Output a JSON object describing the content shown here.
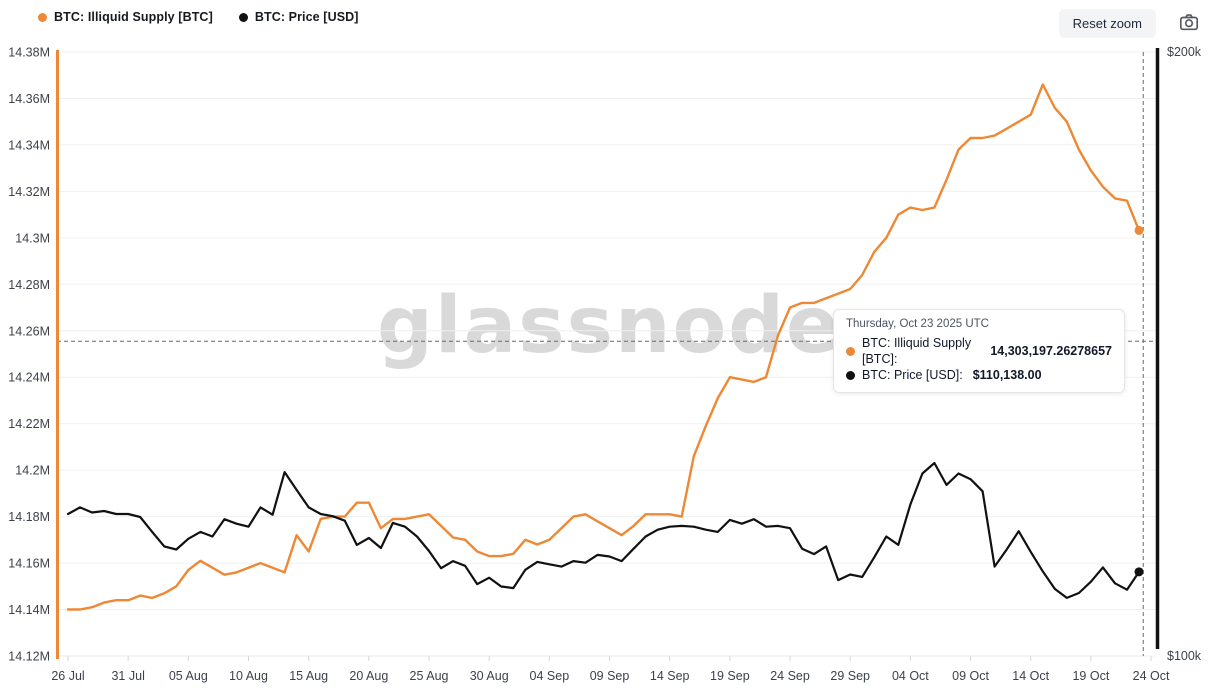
{
  "header": {
    "legend": [
      {
        "label": "BTC: Illiquid Supply [BTC]",
        "color": "#ED8936"
      },
      {
        "label": "BTC: Price [USD]",
        "color": "#111111"
      }
    ],
    "reset_zoom_label": "Reset zoom"
  },
  "watermark": "glassnode",
  "tooltip": {
    "title": "Thursday, Oct 23 2025 UTC",
    "rows": [
      {
        "label": "BTC: Illiquid Supply [BTC]:",
        "value": "14,303,197.26278657",
        "color": "#ED8936"
      },
      {
        "label": "BTC: Price [USD]:",
        "value": "$110,138.00",
        "color": "#111111"
      }
    ]
  },
  "chart_data": {
    "type": "line",
    "title": "",
    "start_date": "2025-07-26",
    "end_date": "2025-10-23",
    "x_tick_labels": [
      "26 Jul",
      "31 Jul",
      "05 Aug",
      "10 Aug",
      "15 Aug",
      "20 Aug",
      "25 Aug",
      "30 Aug",
      "04 Sep",
      "09 Sep",
      "14 Sep",
      "19 Sep",
      "24 Sep",
      "29 Sep",
      "04 Oct",
      "09 Oct",
      "14 Oct",
      "19 Oct",
      "24 Oct"
    ],
    "x_tick_days": [
      0,
      5,
      10,
      15,
      20,
      25,
      30,
      35,
      40,
      45,
      50,
      55,
      60,
      65,
      70,
      75,
      80,
      85,
      90
    ],
    "left_axis": {
      "scale": "linear",
      "range": [
        14.12,
        14.38
      ],
      "unit": "M BTC",
      "ticks": [
        {
          "label": "14.38M",
          "value": 14.38
        },
        {
          "label": "14.36M",
          "value": 14.36
        },
        {
          "label": "14.34M",
          "value": 14.34
        },
        {
          "label": "14.32M",
          "value": 14.32
        },
        {
          "label": "14.3M",
          "value": 14.3
        },
        {
          "label": "14.28M",
          "value": 14.28
        },
        {
          "label": "14.26M",
          "value": 14.26
        },
        {
          "label": "14.24M",
          "value": 14.24
        },
        {
          "label": "14.22M",
          "value": 14.22
        },
        {
          "label": "14.2M",
          "value": 14.2
        },
        {
          "label": "14.18M",
          "value": 14.18
        },
        {
          "label": "14.16M",
          "value": 14.16
        },
        {
          "label": "14.14M",
          "value": 14.14
        },
        {
          "label": "14.12M",
          "value": 14.12
        }
      ]
    },
    "right_axis": {
      "scale": "log",
      "range": [
        100000,
        200000
      ],
      "unit": "USD",
      "ticks": [
        {
          "label": "$200k",
          "value": 200000
        },
        {
          "label": "$100k",
          "value": 100000
        }
      ]
    },
    "grid": "horizontal",
    "legend_position": "top-left",
    "crosshair": {
      "day": 89.35,
      "left_axis_value": 14.2555
    },
    "series": [
      {
        "name": "BTC: Illiquid Supply [BTC]",
        "axis": "left",
        "color": "#ED8936",
        "line_width": 2.4,
        "values": [
          14.14,
          14.14,
          14.141,
          14.143,
          14.144,
          14.144,
          14.146,
          14.145,
          14.147,
          14.15,
          14.157,
          14.161,
          14.158,
          14.155,
          14.156,
          14.158,
          14.16,
          14.158,
          14.156,
          14.172,
          14.165,
          14.179,
          14.18,
          14.18,
          14.186,
          14.186,
          14.175,
          14.179,
          14.179,
          14.18,
          14.181,
          14.176,
          14.171,
          14.17,
          14.165,
          14.163,
          14.163,
          14.164,
          14.17,
          14.168,
          14.17,
          14.175,
          14.18,
          14.181,
          14.178,
          14.175,
          14.172,
          14.176,
          14.181,
          14.181,
          14.181,
          14.18,
          14.206,
          14.219,
          14.231,
          14.24,
          14.239,
          14.238,
          14.24,
          14.258,
          14.27,
          14.272,
          14.272,
          14.274,
          14.276,
          14.278,
          14.284,
          14.294,
          14.3,
          14.31,
          14.313,
          14.312,
          14.313,
          14.325,
          14.338,
          14.343,
          14.343,
          14.344,
          14.347,
          14.35,
          14.353,
          14.366,
          14.356,
          14.35,
          14.338,
          14.329,
          14.322,
          14.317,
          14.316,
          14.30319726278657
        ]
      },
      {
        "name": "BTC: Price [USD]",
        "axis": "right",
        "color": "#111111",
        "line_width": 2.2,
        "values": [
          117700,
          118600,
          117900,
          118100,
          117700,
          117700,
          117300,
          115300,
          113400,
          113000,
          114400,
          115300,
          114700,
          117000,
          116400,
          116000,
          118600,
          117600,
          123500,
          121000,
          118600,
          117700,
          117400,
          116800,
          113600,
          114500,
          113200,
          116500,
          116000,
          114700,
          112800,
          110600,
          111500,
          110900,
          108600,
          109400,
          108300,
          108100,
          110400,
          111400,
          111100,
          110800,
          111500,
          111300,
          112300,
          112100,
          111500,
          113100,
          114700,
          115600,
          116000,
          116100,
          116000,
          115600,
          115300,
          116900,
          116400,
          117000,
          116000,
          116100,
          115800,
          113100,
          112400,
          113400,
          109100,
          109800,
          109500,
          112000,
          114700,
          113600,
          119000,
          123300,
          124800,
          121700,
          123300,
          122500,
          120800,
          110800,
          113000,
          115400,
          112700,
          110200,
          108000,
          106900,
          107500,
          108900,
          110700,
          108700,
          107900,
          110138
        ]
      }
    ]
  }
}
